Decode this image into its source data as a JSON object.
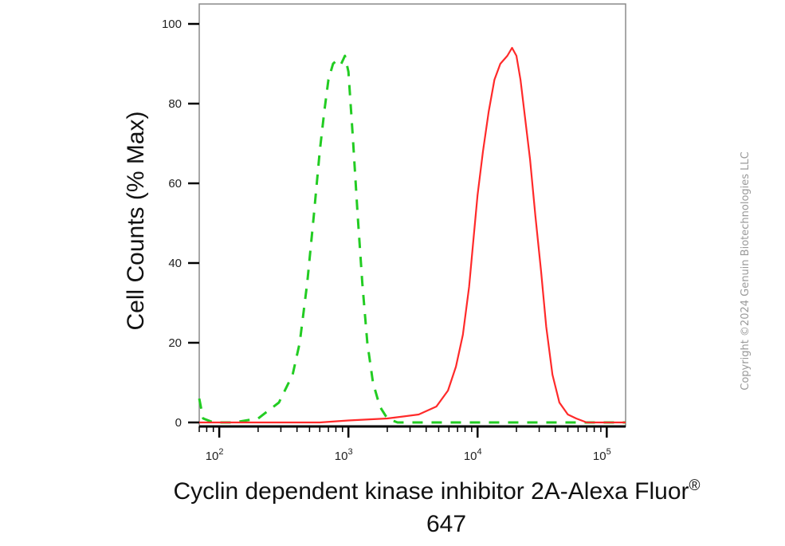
{
  "chart_data": {
    "type": "line",
    "xlabel_line1": "Cyclin dependent kinase inhibitor 2A-Alexa Fluor",
    "xlabel_sup": "®",
    "xlabel_line2": "647",
    "ylabel": "Cell Counts (% Max)",
    "x_scale": "log",
    "xlim": [
      70,
      140000
    ],
    "ylim": [
      -1,
      105
    ],
    "yticks": [
      0,
      20,
      40,
      60,
      80,
      100
    ],
    "xticks": [
      {
        "value": 100,
        "base": "10",
        "exp": "2"
      },
      {
        "value": 1000,
        "base": "10",
        "exp": "3"
      },
      {
        "value": 10000,
        "base": "10",
        "exp": "4"
      },
      {
        "value": 100000,
        "base": "10",
        "exp": "5"
      }
    ],
    "grid": false,
    "legend": "none",
    "series": [
      {
        "style": "dashed",
        "color": "#22cc22",
        "points": [
          [
            70,
            6
          ],
          [
            75,
            1
          ],
          [
            90,
            0
          ],
          [
            130,
            0
          ],
          [
            200,
            1
          ],
          [
            290,
            5
          ],
          [
            370,
            12
          ],
          [
            420,
            20
          ],
          [
            480,
            35
          ],
          [
            540,
            52
          ],
          [
            600,
            68
          ],
          [
            650,
            78
          ],
          [
            700,
            86
          ],
          [
            760,
            90
          ],
          [
            820,
            91
          ],
          [
            880,
            90
          ],
          [
            940,
            92
          ],
          [
            1000,
            88
          ],
          [
            1080,
            72
          ],
          [
            1180,
            52
          ],
          [
            1280,
            35
          ],
          [
            1400,
            20
          ],
          [
            1550,
            10
          ],
          [
            1750,
            4
          ],
          [
            2000,
            1
          ],
          [
            2400,
            0
          ],
          [
            4000,
            0
          ],
          [
            100000,
            0
          ],
          [
            140000,
            0
          ]
        ]
      },
      {
        "style": "solid",
        "color": "#ff2a2a",
        "points": [
          [
            70,
            0
          ],
          [
            600,
            0
          ],
          [
            1000,
            0.5
          ],
          [
            2000,
            1
          ],
          [
            3500,
            2
          ],
          [
            4800,
            4
          ],
          [
            5900,
            8
          ],
          [
            6800,
            14
          ],
          [
            7700,
            22
          ],
          [
            8600,
            34
          ],
          [
            9300,
            46
          ],
          [
            10000,
            57
          ],
          [
            11000,
            68
          ],
          [
            12200,
            78
          ],
          [
            13500,
            86
          ],
          [
            15000,
            90
          ],
          [
            17000,
            92
          ],
          [
            18500,
            94
          ],
          [
            20000,
            92
          ],
          [
            21500,
            86
          ],
          [
            23000,
            78
          ],
          [
            25500,
            66
          ],
          [
            28000,
            52
          ],
          [
            31000,
            38
          ],
          [
            34000,
            24
          ],
          [
            38000,
            12
          ],
          [
            43000,
            5
          ],
          [
            50000,
            2
          ],
          [
            58000,
            1
          ],
          [
            70000,
            0
          ],
          [
            140000,
            0
          ]
        ]
      }
    ]
  },
  "copyright": "Copyright ©2024 Genuin Biotechnologies LLC"
}
